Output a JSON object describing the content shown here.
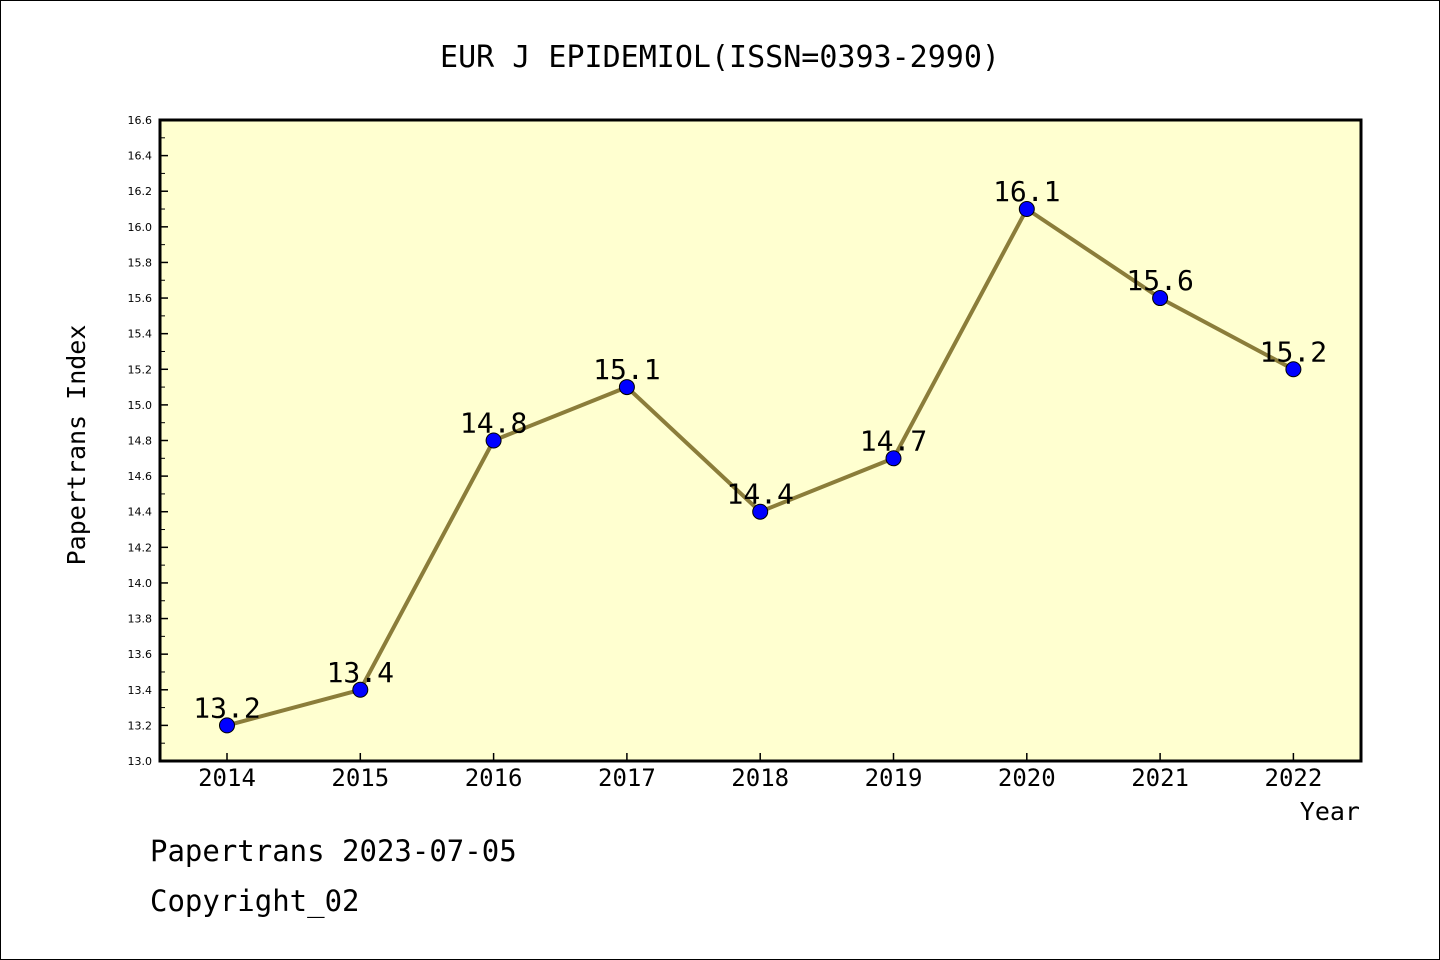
{
  "chart_data": {
    "type": "line",
    "title": "EUR J EPIDEMIOL(ISSN=0393-2990)",
    "xlabel": "Year",
    "ylabel": "Papertrans Index",
    "categories": [
      "2014",
      "2015",
      "2016",
      "2017",
      "2018",
      "2019",
      "2020",
      "2021",
      "2022"
    ],
    "values": [
      13.2,
      13.4,
      14.8,
      15.1,
      14.4,
      14.7,
      16.1,
      15.6,
      15.2
    ],
    "data_labels": [
      "13.2",
      "13.4",
      "14.8",
      "15.1",
      "14.4",
      "14.7",
      "16.1",
      "15.6",
      "15.2"
    ],
    "ylim": [
      13.0,
      16.6
    ],
    "yticks": [
      "13.0",
      "13.2",
      "13.4",
      "13.6",
      "13.8",
      "14.0",
      "14.2",
      "14.4",
      "14.6",
      "14.8",
      "15.0",
      "15.2",
      "15.4",
      "15.6",
      "15.8",
      "16.0",
      "16.2",
      "16.4",
      "16.6"
    ],
    "grid": false,
    "colors": {
      "plot_background": "#ffffd0",
      "line": "#8b7d3a",
      "marker": "#0000ff"
    }
  },
  "footer": {
    "line1": "Papertrans 2023-07-05",
    "line2": "Copyright_02"
  }
}
